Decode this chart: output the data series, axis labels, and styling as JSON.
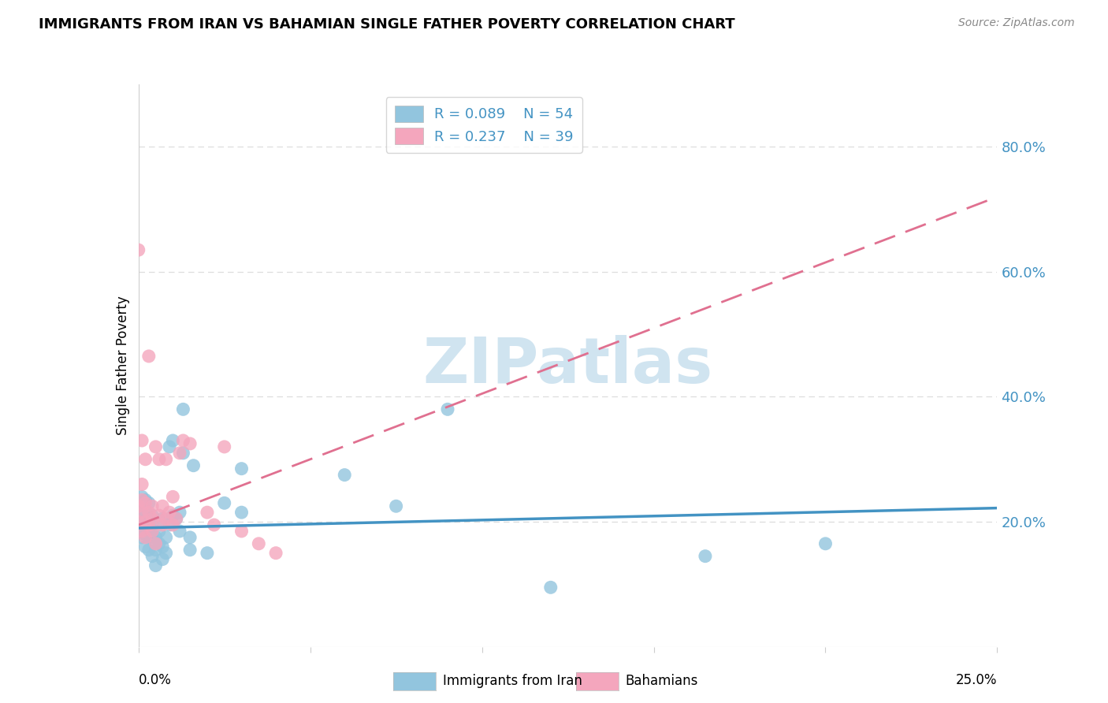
{
  "title": "IMMIGRANTS FROM IRAN VS BAHAMIAN SINGLE FATHER POVERTY CORRELATION CHART",
  "source": "Source: ZipAtlas.com",
  "ylabel": "Single Father Poverty",
  "right_yticks": [
    "80.0%",
    "60.0%",
    "40.0%",
    "20.0%"
  ],
  "right_ytick_vals": [
    0.8,
    0.6,
    0.4,
    0.2
  ],
  "legend1_label": "Immigrants from Iran",
  "legend2_label": "Bahamians",
  "R1": "0.089",
  "N1": "54",
  "R2": "0.237",
  "N2": "39",
  "color_blue": "#92c5de",
  "color_pink": "#f4a6bd",
  "color_blue_dark": "#4393c3",
  "color_pink_dark": "#d6604d",
  "color_pink_trend": "#e07090",
  "xlim": [
    0.0,
    0.25
  ],
  "ylim": [
    0.0,
    0.9
  ],
  "blue_x": [
    0.0,
    0.0,
    0.001,
    0.001,
    0.001,
    0.001,
    0.001,
    0.002,
    0.002,
    0.002,
    0.002,
    0.002,
    0.002,
    0.003,
    0.003,
    0.003,
    0.003,
    0.003,
    0.004,
    0.004,
    0.004,
    0.004,
    0.005,
    0.005,
    0.005,
    0.006,
    0.006,
    0.007,
    0.007,
    0.007,
    0.008,
    0.008,
    0.009,
    0.009,
    0.01,
    0.01,
    0.011,
    0.012,
    0.012,
    0.013,
    0.013,
    0.015,
    0.015,
    0.016,
    0.02,
    0.025,
    0.03,
    0.03,
    0.06,
    0.075,
    0.09,
    0.12,
    0.165,
    0.2
  ],
  "blue_y": [
    0.185,
    0.21,
    0.175,
    0.195,
    0.215,
    0.225,
    0.24,
    0.16,
    0.18,
    0.195,
    0.21,
    0.22,
    0.235,
    0.155,
    0.175,
    0.195,
    0.21,
    0.23,
    0.145,
    0.175,
    0.195,
    0.21,
    0.13,
    0.155,
    0.175,
    0.165,
    0.185,
    0.14,
    0.16,
    0.205,
    0.15,
    0.175,
    0.195,
    0.32,
    0.21,
    0.33,
    0.205,
    0.185,
    0.215,
    0.31,
    0.38,
    0.155,
    0.175,
    0.29,
    0.15,
    0.23,
    0.215,
    0.285,
    0.275,
    0.225,
    0.38,
    0.095,
    0.145,
    0.165
  ],
  "pink_x": [
    0.0,
    0.0,
    0.0,
    0.001,
    0.001,
    0.001,
    0.001,
    0.001,
    0.002,
    0.002,
    0.002,
    0.002,
    0.003,
    0.003,
    0.003,
    0.004,
    0.004,
    0.004,
    0.005,
    0.005,
    0.006,
    0.006,
    0.007,
    0.007,
    0.008,
    0.008,
    0.009,
    0.01,
    0.01,
    0.011,
    0.012,
    0.013,
    0.015,
    0.02,
    0.022,
    0.025,
    0.03,
    0.035,
    0.04
  ],
  "pink_y": [
    0.2,
    0.225,
    0.635,
    0.185,
    0.215,
    0.235,
    0.26,
    0.33,
    0.175,
    0.2,
    0.23,
    0.3,
    0.195,
    0.215,
    0.465,
    0.185,
    0.205,
    0.225,
    0.165,
    0.32,
    0.21,
    0.3,
    0.195,
    0.225,
    0.205,
    0.3,
    0.215,
    0.195,
    0.24,
    0.205,
    0.31,
    0.33,
    0.325,
    0.215,
    0.195,
    0.32,
    0.185,
    0.165,
    0.15
  ],
  "watermark": "ZIPatlas",
  "watermark_color": "#d0e4f0",
  "background_color": "#ffffff",
  "grid_color": "#dddddd",
  "spine_color": "#cccccc"
}
